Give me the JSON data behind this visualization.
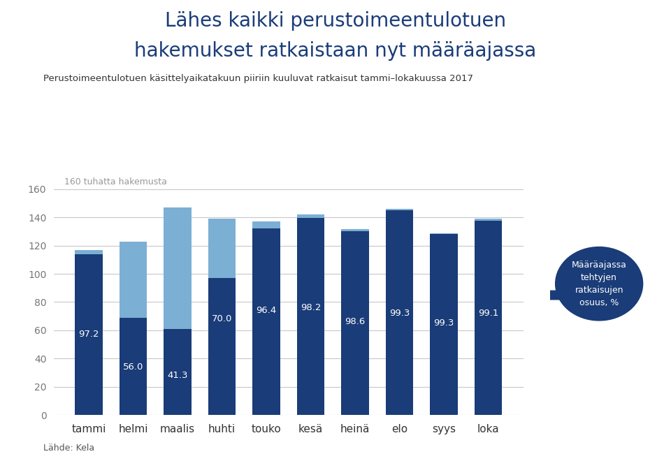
{
  "title_line1": "Lähes kaikki perustoimeentulotuen",
  "title_line2": "hakemukset ratkaistaan nyt määräajassa",
  "subtitle": "Perustoimeentulotuen käsittelyaikatakuun piiriin kuuluvat ratkaisut tammi–lokakuussa 2017",
  "ylabel": "160 tuhatta hakemusta",
  "source": "Lähde: Kela",
  "categories": [
    "tammi",
    "helmi",
    "maalis",
    "huhti",
    "touko",
    "kesä",
    "heinä",
    "elo",
    "syys",
    "loka"
  ],
  "totals": [
    117.0,
    123.0,
    147.0,
    139.0,
    137.0,
    142.0,
    132.0,
    146.0,
    129.0,
    139.0
  ],
  "percentages": [
    97.2,
    56.0,
    41.3,
    70.0,
    96.4,
    98.2,
    98.6,
    99.3,
    99.3,
    99.1
  ],
  "dark_blue": "#1a3c78",
  "light_blue": "#7bafd4",
  "title_color": "#1a3c78",
  "annotation_bg": "#1a3c78",
  "annotation_text": "Määräajassa\ntehtyjen\nratkaisujen\nosuus, %",
  "ylim": [
    0,
    170
  ],
  "yticks": [
    0,
    20,
    40,
    60,
    80,
    100,
    120,
    140,
    160
  ],
  "grid_color": "#c8c8c8",
  "bar_width": 0.62,
  "pct_y_positions": [
    57,
    34,
    28,
    68,
    74,
    76,
    66,
    72,
    65,
    72
  ]
}
